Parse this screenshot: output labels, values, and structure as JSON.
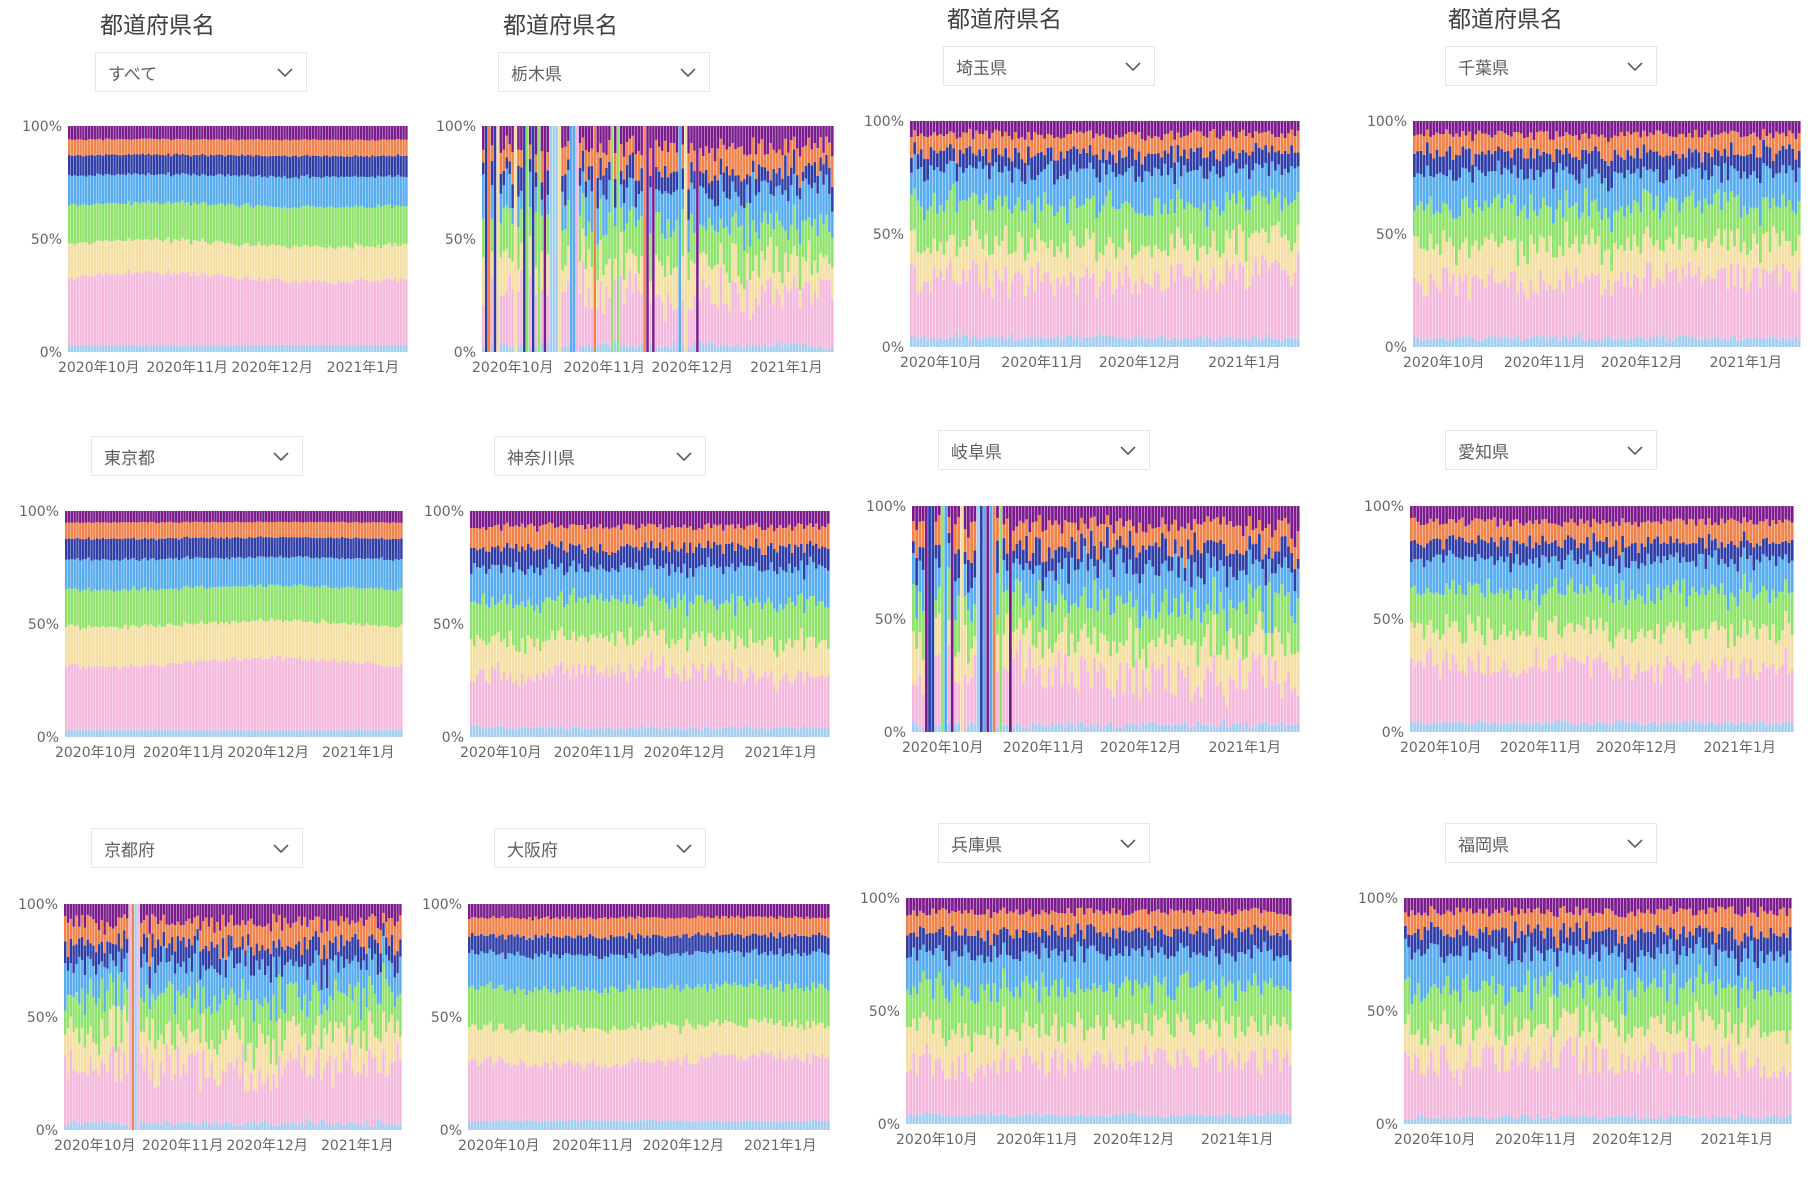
{
  "slicer_title": "都道府県名",
  "series_colors": [
    "#a3cef1",
    "#f5b8dd",
    "#f4dea1",
    "#8fe26a",
    "#56acef",
    "#2f3ea6",
    "#f0824a",
    "#7b1b8c"
  ],
  "colors": {
    "background": "#ffffff",
    "dropdown_border": "#e6e6e6",
    "axis_text": "#666666"
  },
  "panels": [
    {
      "selected": "すべて"
    },
    {
      "selected": "栃木県"
    },
    {
      "selected": "埼玉県"
    },
    {
      "selected": "千葉県"
    },
    {
      "selected": "東京都"
    },
    {
      "selected": "神奈川県"
    },
    {
      "selected": "岐阜県"
    },
    {
      "selected": "愛知県"
    },
    {
      "selected": "京都府"
    },
    {
      "selected": "大阪府"
    },
    {
      "selected": "兵庫県"
    },
    {
      "selected": "福岡県"
    }
  ],
  "chart_data": [
    {
      "type": "bar",
      "stacked": "100%",
      "panel": "すべて",
      "x_range": [
        "2020-10-01",
        "2021-01-31"
      ],
      "x_ticks": [
        "2020年10月",
        "2020年11月",
        "2020年12月",
        "2021年1月"
      ],
      "y_ticks": [
        "0%",
        "50%",
        "100%"
      ],
      "ylim": [
        0,
        100
      ],
      "grid": false,
      "bands_mean_percent": [
        3,
        30,
        15,
        17,
        13,
        9,
        7,
        6
      ]
    },
    {
      "type": "bar",
      "stacked": "100%",
      "panel": "栃木県",
      "x_range": [
        "2020-10-01",
        "2021-01-31"
      ],
      "x_ticks": [
        "2020年10月",
        "2020年11月",
        "2020年12月",
        "2021年1月"
      ],
      "y_ticks": [
        "0%",
        "50%",
        "100%"
      ],
      "ylim": [
        0,
        100
      ],
      "grid": false,
      "bands_mean_percent": [
        3,
        24,
        14,
        17,
        14,
        9,
        10,
        9
      ]
    },
    {
      "type": "bar",
      "stacked": "100%",
      "panel": "埼玉県",
      "x_range": [
        "2020-10-01",
        "2021-01-31"
      ],
      "x_ticks": [
        "2020年10月",
        "2020年11月",
        "2020年12月",
        "2021年1月"
      ],
      "y_ticks": [
        "0%",
        "50%",
        "100%"
      ],
      "ylim": [
        0,
        100
      ],
      "grid": false,
      "bands_mean_percent": [
        4,
        27,
        15,
        17,
        15,
        8,
        8,
        6
      ]
    },
    {
      "type": "bar",
      "stacked": "100%",
      "panel": "千葉県",
      "x_range": [
        "2020-10-01",
        "2021-01-31"
      ],
      "x_ticks": [
        "2020年10月",
        "2020年11月",
        "2020年12月",
        "2021年1月"
      ],
      "y_ticks": [
        "0%",
        "50%",
        "100%"
      ],
      "ylim": [
        0,
        100
      ],
      "grid": false,
      "bands_mean_percent": [
        4,
        27,
        15,
        17,
        14,
        9,
        8,
        6
      ]
    },
    {
      "type": "bar",
      "stacked": "100%",
      "panel": "東京都",
      "x_range": [
        "2020-10-01",
        "2021-01-31"
      ],
      "x_ticks": [
        "2020年10月",
        "2020年11月",
        "2020年12月",
        "2021年1月"
      ],
      "y_ticks": [
        "0%",
        "50%",
        "100%"
      ],
      "ylim": [
        0,
        100
      ],
      "grid": false,
      "bands_mean_percent": [
        3,
        30,
        17,
        16,
        13,
        9,
        7,
        5
      ]
    },
    {
      "type": "bar",
      "stacked": "100%",
      "panel": "神奈川県",
      "x_range": [
        "2020-10-01",
        "2021-01-31"
      ],
      "x_ticks": [
        "2020年10月",
        "2020年11月",
        "2020年12月",
        "2021年1月"
      ],
      "y_ticks": [
        "0%",
        "50%",
        "100%"
      ],
      "ylim": [
        0,
        100
      ],
      "grid": false,
      "bands_mean_percent": [
        4,
        24,
        15,
        17,
        15,
        9,
        9,
        7
      ]
    },
    {
      "type": "bar",
      "stacked": "100%",
      "panel": "岐阜県",
      "x_range": [
        "2020-10-01",
        "2021-01-31"
      ],
      "x_ticks": [
        "2020年10月",
        "2020年11月",
        "2020年12月",
        "2021年1月"
      ],
      "y_ticks": [
        "0%",
        "50%",
        "100%"
      ],
      "ylim": [
        0,
        100
      ],
      "grid": false,
      "bands_mean_percent": [
        3,
        23,
        16,
        17,
        14,
        9,
        10,
        8
      ]
    },
    {
      "type": "bar",
      "stacked": "100%",
      "panel": "愛知県",
      "x_range": [
        "2020-10-01",
        "2021-01-31"
      ],
      "x_ticks": [
        "2020年10月",
        "2020年11月",
        "2020年12月",
        "2021年1月"
      ],
      "y_ticks": [
        "0%",
        "50%",
        "100%"
      ],
      "ylim": [
        0,
        100
      ],
      "grid": false,
      "bands_mean_percent": [
        4,
        25,
        16,
        17,
        14,
        8,
        9,
        7
      ]
    },
    {
      "type": "bar",
      "stacked": "100%",
      "panel": "京都府",
      "x_range": [
        "2020-10-01",
        "2021-01-31"
      ],
      "x_ticks": [
        "2020年10月",
        "2020年11月",
        "2020年12月",
        "2021年1月"
      ],
      "y_ticks": [
        "0%",
        "50%",
        "100%"
      ],
      "ylim": [
        0,
        100
      ],
      "grid": false,
      "bands_mean_percent": [
        3,
        25,
        15,
        17,
        14,
        9,
        9,
        8
      ]
    },
    {
      "type": "bar",
      "stacked": "100%",
      "panel": "大阪府",
      "x_range": [
        "2020-10-01",
        "2021-01-31"
      ],
      "x_ticks": [
        "2020年10月",
        "2020年11月",
        "2020年12月",
        "2021年1月"
      ],
      "y_ticks": [
        "0%",
        "50%",
        "100%"
      ],
      "ylim": [
        0,
        100
      ],
      "grid": false,
      "bands_mean_percent": [
        4,
        27,
        15,
        17,
        15,
        8,
        8,
        6
      ]
    },
    {
      "type": "bar",
      "stacked": "100%",
      "panel": "兵庫県",
      "x_range": [
        "2020-10-01",
        "2021-01-31"
      ],
      "x_ticks": [
        "2020年10月",
        "2020年11月",
        "2020年12月",
        "2021年1月"
      ],
      "y_ticks": [
        "0%",
        "50%",
        "100%"
      ],
      "ylim": [
        0,
        100
      ],
      "grid": false,
      "bands_mean_percent": [
        4,
        24,
        15,
        18,
        15,
        9,
        9,
        6
      ]
    },
    {
      "type": "bar",
      "stacked": "100%",
      "panel": "福岡県",
      "x_range": [
        "2020-10-01",
        "2021-01-31"
      ],
      "x_ticks": [
        "2020年10月",
        "2020年11月",
        "2020年12月",
        "2021年1月"
      ],
      "y_ticks": [
        "0%",
        "50%",
        "100%"
      ],
      "ylim": [
        0,
        100
      ],
      "grid": false,
      "bands_mean_percent": [
        3,
        26,
        15,
        17,
        15,
        9,
        9,
        6
      ]
    }
  ]
}
